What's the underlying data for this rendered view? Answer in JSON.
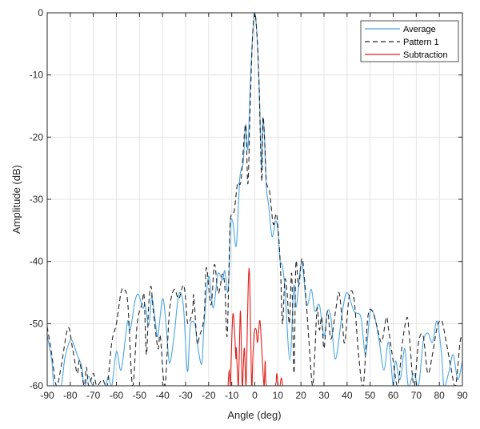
{
  "chart_data": {
    "type": "line",
    "title": "",
    "xlabel": "Angle (deg)",
    "ylabel": "Amplitude (dB)",
    "xlim": [
      -90,
      90
    ],
    "ylim": [
      -60,
      0
    ],
    "xticks": [
      "-90",
      "-80",
      "-70",
      "-60",
      "-50",
      "-40",
      "-30",
      "-20",
      "-10",
      "0",
      "10",
      "20",
      "30",
      "40",
      "50",
      "60",
      "70",
      "80",
      "90"
    ],
    "yticks": [
      "0",
      "-10",
      "-20",
      "-30",
      "-40",
      "-50",
      "-60"
    ],
    "grid": true,
    "legend_position": "top-right",
    "series": [
      {
        "name": "Average",
        "color": "#4da6e0",
        "style": "solid",
        "points": [
          [
            -90,
            -51.8
          ],
          [
            -88,
            -56
          ],
          [
            -87,
            -60
          ],
          [
            -84,
            -60
          ],
          [
            -82.3,
            -55.5
          ],
          [
            -79.7,
            -52.6
          ],
          [
            -77,
            -55
          ],
          [
            -75,
            -57
          ],
          [
            -74,
            -60
          ],
          [
            -72,
            -58.5
          ],
          [
            -70,
            -60
          ],
          [
            -65,
            -60
          ],
          [
            -63.5,
            -58.5
          ],
          [
            -62,
            -60
          ],
          [
            -60,
            -54.5
          ],
          [
            -58,
            -57.5
          ],
          [
            -56,
            -52
          ],
          [
            -55,
            -49.5
          ],
          [
            -54,
            -51
          ],
          [
            -52,
            -46.5
          ],
          [
            -50.5,
            -45.3
          ],
          [
            -48.5,
            -47.5
          ],
          [
            -47.5,
            -47
          ],
          [
            -46,
            -50.3
          ],
          [
            -45,
            -46.5
          ],
          [
            -44.5,
            -45.7
          ],
          [
            -43,
            -50
          ],
          [
            -42,
            -52
          ],
          [
            -40,
            -46
          ],
          [
            -38.5,
            -50
          ],
          [
            -37,
            -56.3
          ],
          [
            -35,
            -52
          ],
          [
            -33,
            -45.4
          ],
          [
            -31,
            -47
          ],
          [
            -29.2,
            -57.7
          ],
          [
            -28,
            -50.5
          ],
          [
            -26,
            -50
          ],
          [
            -25,
            -53
          ],
          [
            -23,
            -56.5
          ],
          [
            -22,
            -50
          ],
          [
            -20,
            -42.4
          ],
          [
            -18,
            -47.5
          ],
          [
            -16,
            -42
          ],
          [
            -14,
            -43
          ],
          [
            -13,
            -41.5
          ],
          [
            -11.8,
            -45
          ],
          [
            -11,
            -40.8
          ],
          [
            -10.5,
            -33.9
          ],
          [
            -9.5,
            -33.7
          ],
          [
            -8,
            -37.4
          ],
          [
            -6.5,
            -26.6
          ],
          [
            -5,
            -24
          ],
          [
            -4,
            -18
          ],
          [
            -3,
            -21.9
          ],
          [
            -2,
            -12
          ],
          [
            -1,
            -4
          ],
          [
            0,
            0
          ],
          [
            1,
            -4
          ],
          [
            1.8,
            -11
          ],
          [
            3,
            -24.9
          ],
          [
            3.5,
            -17.4
          ],
          [
            4.2,
            -20
          ],
          [
            5,
            -27.9
          ],
          [
            6,
            -31
          ],
          [
            7.5,
            -36
          ],
          [
            9,
            -33.5
          ],
          [
            10,
            -35
          ],
          [
            11,
            -40
          ],
          [
            11.8,
            -40.5
          ],
          [
            13,
            -44
          ],
          [
            15.2,
            -55.9
          ],
          [
            16.9,
            -44
          ],
          [
            18,
            -47.3
          ],
          [
            20.3,
            -40.2
          ],
          [
            22.5,
            -47
          ],
          [
            24.5,
            -44.5
          ],
          [
            26,
            -48
          ],
          [
            28,
            -47
          ],
          [
            30,
            -52
          ],
          [
            31.5,
            -48
          ],
          [
            33,
            -49
          ],
          [
            35,
            -55.7
          ],
          [
            38,
            -48
          ],
          [
            40,
            -45
          ],
          [
            43,
            -48
          ],
          [
            46,
            -49
          ],
          [
            48,
            -55
          ],
          [
            50,
            -48.2
          ],
          [
            52,
            -49
          ],
          [
            54,
            -53
          ],
          [
            56,
            -57.5
          ],
          [
            58,
            -53
          ],
          [
            60,
            -60
          ],
          [
            61,
            -56
          ],
          [
            63,
            -59
          ],
          [
            65,
            -54
          ],
          [
            66.5,
            -60
          ],
          [
            69,
            -58
          ],
          [
            71,
            -60
          ],
          [
            73,
            -53
          ],
          [
            75,
            -51.5
          ],
          [
            77,
            -53
          ],
          [
            79,
            -49.6
          ],
          [
            81,
            -55
          ],
          [
            82,
            -60
          ],
          [
            84,
            -58
          ],
          [
            86,
            -55
          ],
          [
            88,
            -59
          ],
          [
            90,
            -56
          ]
        ]
      },
      {
        "name": "Pattern 1",
        "color": "#262626",
        "style": "dashed",
        "points": [
          [
            -90,
            -50.5
          ],
          [
            -88,
            -55
          ],
          [
            -86,
            -60
          ],
          [
            -84,
            -57
          ],
          [
            -81,
            -50.7
          ],
          [
            -79,
            -54
          ],
          [
            -77,
            -58
          ],
          [
            -76,
            -56
          ],
          [
            -74,
            -60
          ],
          [
            -73,
            -57
          ],
          [
            -72,
            -60
          ],
          [
            -70,
            -58
          ],
          [
            -68.5,
            -60
          ],
          [
            -66,
            -59
          ],
          [
            -64,
            -60
          ],
          [
            -62,
            -53
          ],
          [
            -60,
            -50
          ],
          [
            -58,
            -45
          ],
          [
            -56.5,
            -44.5
          ],
          [
            -55,
            -47
          ],
          [
            -53,
            -60
          ],
          [
            -51,
            -50
          ],
          [
            -49,
            -47
          ],
          [
            -48,
            -45.5
          ],
          [
            -47,
            -55
          ],
          [
            -46,
            -47
          ],
          [
            -45,
            -44
          ],
          [
            -44,
            -48
          ],
          [
            -42,
            -54
          ],
          [
            -41,
            -52
          ],
          [
            -39,
            -60
          ],
          [
            -37,
            -48
          ],
          [
            -35,
            -44.5
          ],
          [
            -33,
            -46
          ],
          [
            -31,
            -43.8
          ],
          [
            -30,
            -46
          ],
          [
            -29,
            -50
          ],
          [
            -27,
            -48
          ],
          [
            -26.5,
            -45.5
          ],
          [
            -25,
            -53
          ],
          [
            -24,
            -52
          ],
          [
            -22,
            -49
          ],
          [
            -21,
            -41
          ],
          [
            -19,
            -47
          ],
          [
            -17.5,
            -40.5
          ],
          [
            -16,
            -45
          ],
          [
            -15,
            -44
          ],
          [
            -14,
            -42
          ],
          [
            -13,
            -44
          ],
          [
            -12,
            -52
          ],
          [
            -11,
            -38
          ],
          [
            -10.5,
            -33
          ],
          [
            -9,
            -32
          ],
          [
            -7.5,
            -27.5
          ],
          [
            -6,
            -27
          ],
          [
            -4,
            -18
          ],
          [
            -3,
            -27.5
          ],
          [
            -2,
            -15
          ],
          [
            -1,
            -4
          ],
          [
            0,
            0
          ],
          [
            1,
            -4
          ],
          [
            1.8,
            -11
          ],
          [
            3,
            -27
          ],
          [
            3.5,
            -17
          ],
          [
            4.2,
            -20
          ],
          [
            5,
            -27
          ],
          [
            6.5,
            -29
          ],
          [
            8,
            -34
          ],
          [
            9.5,
            -32.5
          ],
          [
            11,
            -40
          ],
          [
            12,
            -50
          ],
          [
            13,
            -43
          ],
          [
            14,
            -45
          ],
          [
            15,
            -50
          ],
          [
            16,
            -42
          ],
          [
            17,
            -58
          ],
          [
            17.8,
            -40.4
          ],
          [
            19,
            -44
          ],
          [
            20.5,
            -39.5
          ],
          [
            22,
            -45
          ],
          [
            23.5,
            -53
          ],
          [
            25,
            -60
          ],
          [
            26,
            -55
          ],
          [
            27,
            -47.5
          ],
          [
            28,
            -51
          ],
          [
            29,
            -49
          ],
          [
            30,
            -54
          ],
          [
            31.5,
            -48
          ],
          [
            33,
            -52.5
          ],
          [
            35,
            -48
          ],
          [
            36.5,
            -45
          ],
          [
            38,
            -50
          ],
          [
            39,
            -53
          ],
          [
            41,
            -45.5
          ],
          [
            43,
            -46
          ],
          [
            45,
            -55
          ],
          [
            47,
            -60
          ],
          [
            49,
            -49
          ],
          [
            51,
            -48
          ],
          [
            53,
            -50.5
          ],
          [
            55,
            -53
          ],
          [
            57,
            -49
          ],
          [
            58,
            -51
          ],
          [
            60,
            -56
          ],
          [
            62,
            -60
          ],
          [
            64,
            -53
          ],
          [
            66,
            -49
          ],
          [
            67,
            -52
          ],
          [
            69,
            -60
          ],
          [
            71,
            -53
          ],
          [
            73,
            -52
          ],
          [
            75,
            -58
          ],
          [
            77,
            -55
          ],
          [
            79,
            -50.7
          ],
          [
            81,
            -49.5
          ],
          [
            83,
            -53
          ],
          [
            85,
            -57
          ],
          [
            87,
            -60
          ],
          [
            89,
            -53
          ],
          [
            90,
            -52
          ]
        ]
      },
      {
        "name": "Subtraction",
        "color": "#e0201b",
        "style": "solid",
        "points": [
          [
            -11.6,
            -60
          ],
          [
            -11.1,
            -57.4
          ],
          [
            -10.6,
            -60
          ],
          [
            -10.2,
            -55
          ],
          [
            -9.5,
            -48.5
          ],
          [
            -8.8,
            -51
          ],
          [
            -8.2,
            -55.6
          ],
          [
            -8,
            -54
          ],
          [
            -7.2,
            -60
          ],
          [
            -6.8,
            -56
          ],
          [
            -6.2,
            -48
          ],
          [
            -5.5,
            -60
          ],
          [
            -5,
            -57
          ],
          [
            -4.5,
            -54
          ],
          [
            -3.8,
            -60
          ],
          [
            -3.2,
            -50
          ],
          [
            -2.7,
            -42.3
          ],
          [
            -2.2,
            -43
          ],
          [
            -1.4,
            -60
          ],
          [
            -0.8,
            -55
          ],
          [
            -0.2,
            -51.3
          ],
          [
            0.6,
            -51
          ],
          [
            1.2,
            -53
          ],
          [
            2.2,
            -49.5
          ],
          [
            3,
            -54
          ],
          [
            4,
            -60
          ],
          [
            4.5,
            -56
          ],
          [
            5.1,
            -60
          ],
          [
            8.8,
            -60
          ],
          [
            9.5,
            -58
          ],
          [
            10.1,
            -60
          ],
          [
            10.9,
            -60
          ],
          [
            11.5,
            -58.7
          ],
          [
            12.1,
            -60
          ]
        ]
      }
    ]
  }
}
